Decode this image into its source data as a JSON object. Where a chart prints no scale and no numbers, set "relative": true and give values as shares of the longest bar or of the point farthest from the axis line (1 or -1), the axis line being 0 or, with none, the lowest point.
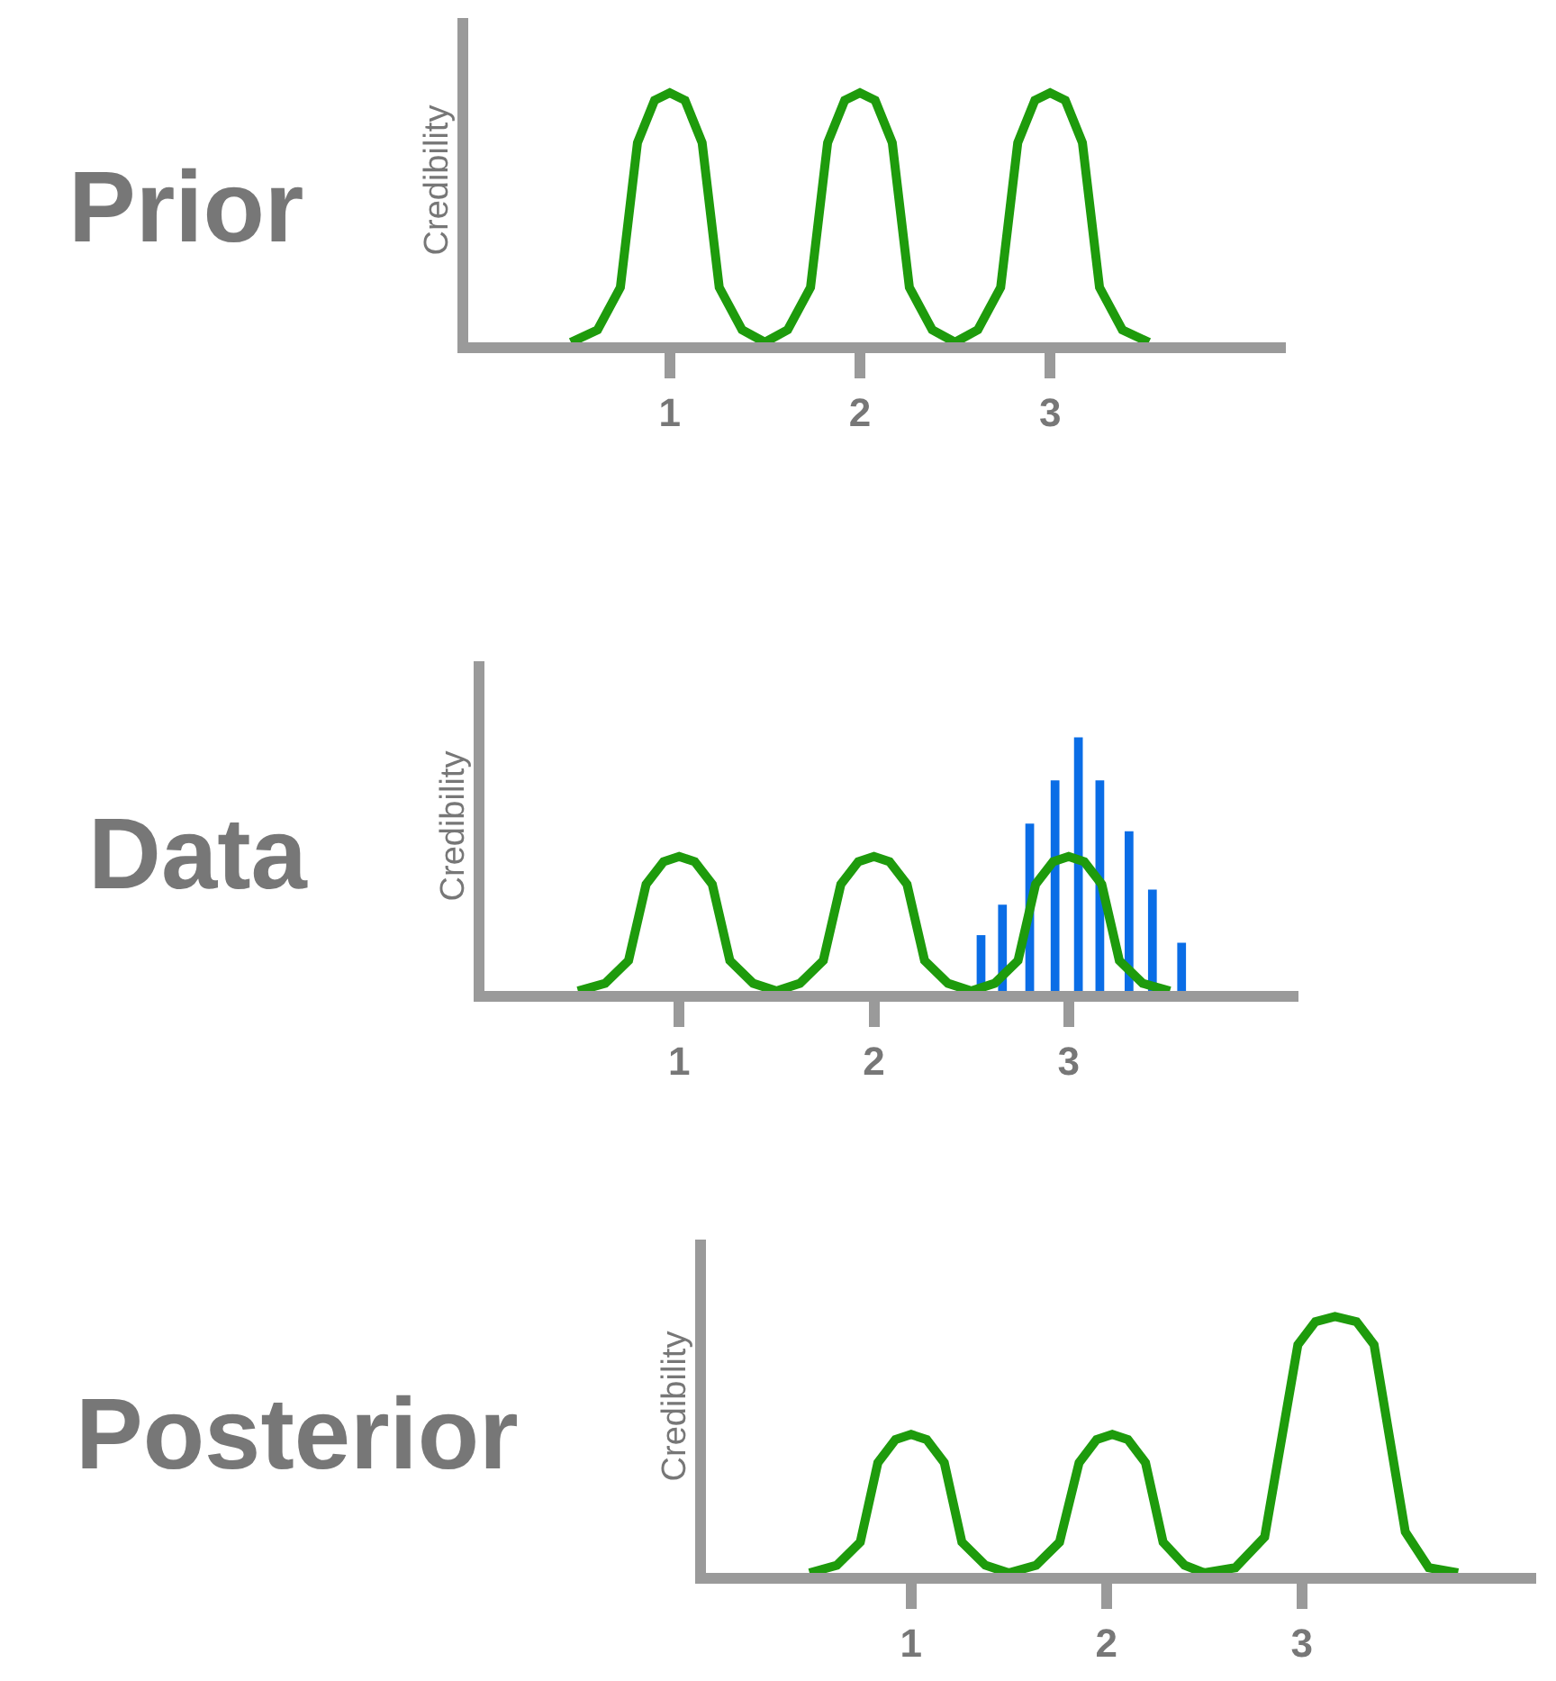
{
  "chart_data": [
    {
      "type": "line",
      "title": "Prior",
      "ylabel": "Credibility",
      "relative": true,
      "xlim": [
        -0.06,
        4.24
      ],
      "xticks": [
        1,
        2,
        3
      ],
      "series": [
        {
          "color": "#1e9b0c",
          "x": [
            0.48,
            0.62,
            0.74,
            0.83,
            0.92,
            1,
            1.08,
            1.17,
            1.26,
            1.38,
            1.5,
            1.62,
            1.74,
            1.83,
            1.92,
            2,
            2.08,
            2.17,
            2.26,
            2.38,
            2.5,
            2.62,
            2.74,
            2.83,
            2.92,
            3,
            3.08,
            3.17,
            3.26,
            3.38,
            3.52
          ],
          "values": [
            0,
            0.05,
            0.22,
            0.8,
            0.97,
            1,
            0.97,
            0.8,
            0.22,
            0.05,
            0,
            0.05,
            0.22,
            0.8,
            0.97,
            1,
            0.97,
            0.8,
            0.22,
            0.05,
            0,
            0.05,
            0.22,
            0.8,
            0.97,
            1,
            0.97,
            0.8,
            0.22,
            0.05,
            0
          ]
        }
      ]
    },
    {
      "type": "line",
      "title": "Data",
      "ylabel": "Credibility",
      "relative": true,
      "xlim": [
        0,
        4.18
      ],
      "xticks": [
        1,
        2,
        3
      ],
      "series": [
        {
          "color": "#1e9b0c",
          "x": [
            0.48,
            0.62,
            0.74,
            0.83,
            0.92,
            1,
            1.08,
            1.17,
            1.26,
            1.38,
            1.5,
            1.62,
            1.74,
            1.83,
            1.92,
            2,
            2.08,
            2.17,
            2.26,
            2.38,
            2.5,
            2.62,
            2.74,
            2.83,
            2.92,
            3,
            3.08,
            3.17,
            3.26,
            3.38,
            3.52
          ],
          "values": [
            0,
            0.03,
            0.12,
            0.42,
            0.51,
            0.53,
            0.51,
            0.42,
            0.12,
            0.03,
            0,
            0.03,
            0.12,
            0.42,
            0.51,
            0.53,
            0.51,
            0.42,
            0.12,
            0.03,
            0,
            0.03,
            0.12,
            0.42,
            0.51,
            0.53,
            0.51,
            0.42,
            0.12,
            0.03,
            0
          ]
        },
        {
          "type": "bar",
          "color": "#0a6de6",
          "x": [
            2.55,
            2.66,
            2.8,
            2.93,
            3.05,
            3.16,
            3.31,
            3.43,
            3.58
          ],
          "values": [
            0.22,
            0.34,
            0.66,
            0.83,
            1,
            0.83,
            0.63,
            0.4,
            0.19
          ]
        }
      ]
    },
    {
      "type": "line",
      "title": "Posterior",
      "ylabel": "Credibility",
      "relative": true,
      "xlim": [
        -0.05,
        4.2
      ],
      "xticks": [
        1,
        2,
        3
      ],
      "series": [
        {
          "color": "#1e9b0c",
          "x": [
            0.48,
            0.62,
            0.74,
            0.83,
            0.92,
            1,
            1.08,
            1.17,
            1.26,
            1.38,
            1.5,
            1.64,
            1.76,
            1.86,
            1.95,
            2.03,
            2.11,
            2.2,
            2.29,
            2.4,
            2.5,
            2.66,
            2.81,
            2.98,
            3.07,
            3.17,
            3.28,
            3.37,
            3.53,
            3.65,
            3.8
          ],
          "values": [
            0,
            0.03,
            0.12,
            0.43,
            0.52,
            0.54,
            0.52,
            0.43,
            0.12,
            0.03,
            0,
            0.03,
            0.12,
            0.43,
            0.52,
            0.54,
            0.52,
            0.43,
            0.12,
            0.03,
            0,
            0.02,
            0.14,
            0.89,
            0.98,
            1,
            0.98,
            0.89,
            0.16,
            0.02,
            0
          ]
        }
      ]
    }
  ]
}
